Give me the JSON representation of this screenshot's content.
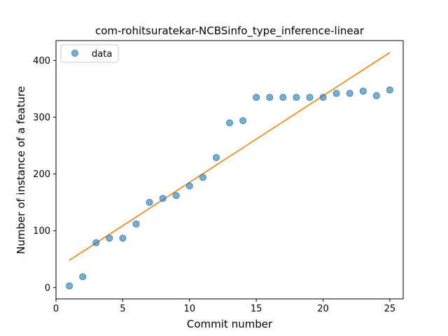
{
  "chart_data": {
    "type": "scatter",
    "title": "com-rohitsuratekar-NCBSinfo_type_inference-linear",
    "xlabel": "Commit number",
    "ylabel": "Number of instance of a feature",
    "xlim": [
      0,
      26
    ],
    "ylim": [
      -20,
      435
    ],
    "xticks": [
      0,
      5,
      10,
      15,
      20,
      25
    ],
    "yticks": [
      0,
      100,
      200,
      300,
      400
    ],
    "grid": false,
    "legend_position": "top-left",
    "series": [
      {
        "name": "data",
        "kind": "scatter",
        "color": "#1f77b4",
        "x": [
          1,
          2,
          3,
          4,
          5,
          6,
          7,
          8,
          9,
          10,
          11,
          12,
          13,
          14,
          15,
          16,
          17,
          18,
          19,
          20,
          21,
          22,
          23,
          24,
          25
        ],
        "y": [
          3,
          19,
          79,
          87,
          87,
          112,
          150,
          157,
          162,
          179,
          194,
          229,
          290,
          294,
          335,
          335,
          335,
          335,
          335,
          335,
          342,
          342,
          346,
          338,
          348
        ]
      },
      {
        "kind": "line",
        "color": "#ff7f0e",
        "x": [
          1,
          25
        ],
        "y": [
          48,
          414
        ]
      }
    ]
  }
}
